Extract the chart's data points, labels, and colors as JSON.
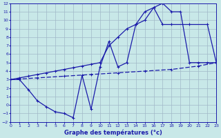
{
  "xlabel": "Graphe des températures (°c)",
  "xlim": [
    0,
    23
  ],
  "ylim": [
    -2,
    12
  ],
  "xticks": [
    0,
    1,
    2,
    3,
    4,
    5,
    6,
    7,
    8,
    9,
    10,
    11,
    12,
    13,
    14,
    15,
    16,
    17,
    18,
    19,
    20,
    21,
    22,
    23
  ],
  "yticks": [
    -2,
    -1,
    0,
    1,
    2,
    3,
    4,
    5,
    6,
    7,
    8,
    9,
    10,
    11,
    12
  ],
  "bg_color": "#c8e8e8",
  "grid_color": "#a0b8c8",
  "line_color": "#1a1aaa",
  "line1_x": [
    0,
    1,
    2,
    3,
    4,
    5,
    6,
    7,
    8,
    9,
    10,
    11,
    12,
    13,
    14,
    15,
    16,
    17,
    18,
    19,
    20,
    21,
    22,
    23
  ],
  "line1_y": [
    3.0,
    3.0,
    1.8,
    0.5,
    -0.2,
    -0.8,
    -1.0,
    -1.5,
    3.5,
    -0.5,
    4.5,
    7.5,
    4.5,
    5.0,
    9.5,
    11.0,
    11.5,
    12.0,
    11.0,
    11.0,
    5.0,
    5.0,
    5.0,
    5.0
  ],
  "line2_x": [
    0,
    1,
    2,
    3,
    4,
    5,
    6,
    7,
    8,
    9,
    10,
    11,
    12,
    13,
    14,
    15,
    16,
    17,
    18,
    20,
    22,
    23
  ],
  "line2_y": [
    3.0,
    3.2,
    3.4,
    3.6,
    3.8,
    4.0,
    4.2,
    4.4,
    4.6,
    4.8,
    5.0,
    7.0,
    8.0,
    9.0,
    9.5,
    10.0,
    11.5,
    9.5,
    9.5,
    9.5,
    9.5,
    5.0
  ],
  "line3_x": [
    0,
    3,
    6,
    9,
    12,
    15,
    18,
    21,
    23
  ],
  "line3_y": [
    3.0,
    3.2,
    3.4,
    3.6,
    3.8,
    4.0,
    4.2,
    4.6,
    5.0
  ]
}
